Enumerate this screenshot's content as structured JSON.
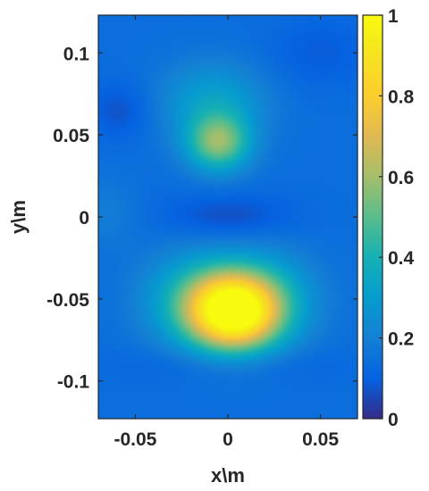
{
  "chart_data": {
    "type": "heatmap",
    "title": "",
    "xlabel": "x\\m",
    "ylabel": "y\\m",
    "xlim": [
      -0.07,
      0.07
    ],
    "ylim": [
      -0.123,
      0.123
    ],
    "x_ticks": [
      -0.05,
      0,
      0.05
    ],
    "x_tick_labels": [
      "-0.05",
      "0",
      "0.05"
    ],
    "y_ticks": [
      0.1,
      0.05,
      0,
      -0.05,
      -0.1
    ],
    "y_tick_labels": [
      "0.1",
      "0.05",
      "0",
      "-0.05",
      "-0.1"
    ],
    "colorbar": {
      "range": [
        0,
        1
      ],
      "ticks": [
        0,
        0.2,
        0.4,
        0.6,
        0.8,
        1
      ],
      "tick_labels": [
        "0",
        "0.2",
        "0.4",
        "0.6",
        "0.8",
        "1"
      ],
      "colormap": "parula"
    },
    "background_level": 0.14,
    "peaks": [
      {
        "x": 0.003,
        "y": -0.058,
        "amplitude": 0.85,
        "sigma_x": 0.017,
        "sigma_y": 0.016
      },
      {
        "x": -0.018,
        "y": -0.05,
        "amplitude": 0.22,
        "sigma_x": 0.02,
        "sigma_y": 0.02
      },
      {
        "x": 0.02,
        "y": -0.05,
        "amplitude": 0.2,
        "sigma_x": 0.02,
        "sigma_y": 0.02
      },
      {
        "x": -0.005,
        "y": 0.045,
        "amplitude": 0.4,
        "sigma_x": 0.012,
        "sigma_y": 0.012
      },
      {
        "x": -0.008,
        "y": 0.07,
        "amplitude": 0.18,
        "sigma_x": 0.02,
        "sigma_y": 0.017
      },
      {
        "x": 0.0,
        "y": 0.0,
        "amplitude": -0.08,
        "sigma_x": 0.025,
        "sigma_y": 0.01
      },
      {
        "x": -0.058,
        "y": 0.065,
        "amplitude": -0.07,
        "sigma_x": 0.012,
        "sigma_y": 0.012
      },
      {
        "x": 0.05,
        "y": 0.1,
        "amplitude": -0.05,
        "sigma_x": 0.02,
        "sigma_y": 0.015
      },
      {
        "x": -0.065,
        "y": 0.003,
        "amplitude": 0.05,
        "sigma_x": 0.012,
        "sigma_y": 0.015
      },
      {
        "x": 0.0,
        "y": -0.09,
        "amplitude": -0.05,
        "sigma_x": 0.04,
        "sigma_y": 0.008
      }
    ]
  }
}
